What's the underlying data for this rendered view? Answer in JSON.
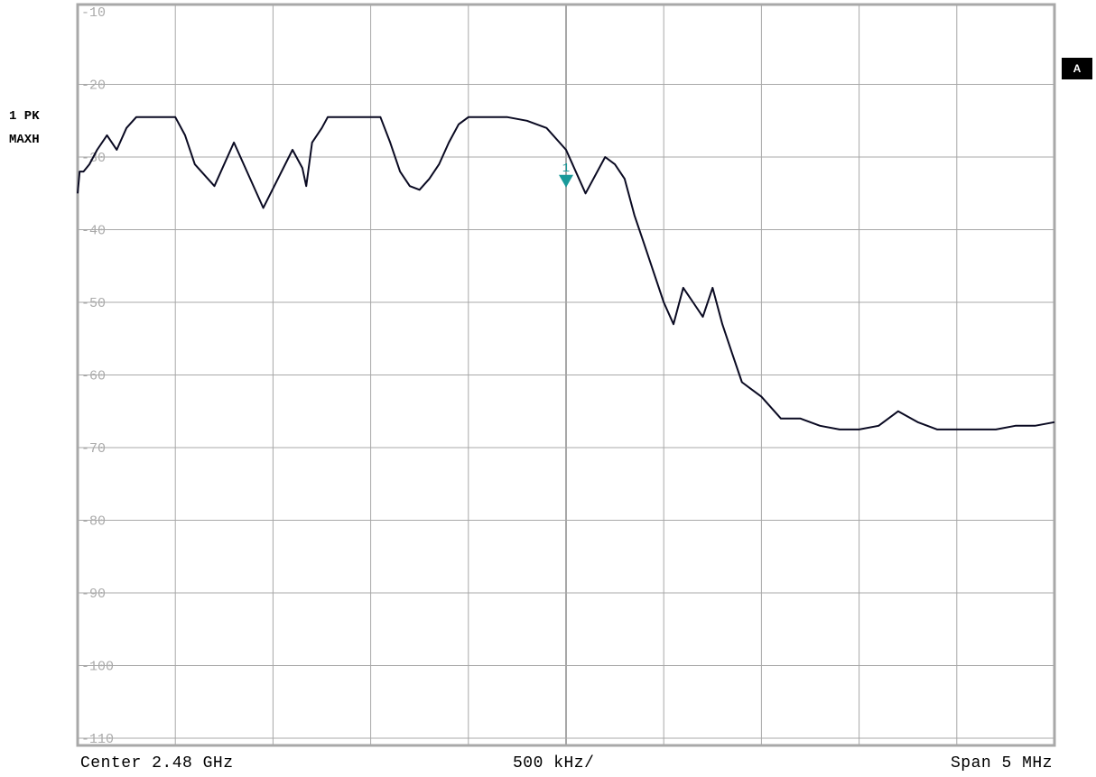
{
  "trace_info": {
    "detector": "1 PK",
    "mode": "MAXH"
  },
  "badge": "A",
  "footer": {
    "center": "Center 2.48 GHz",
    "per_division": "500 kHz/",
    "span": "Span 5 MHz"
  },
  "colors": {
    "trace": "#0a0a22",
    "grid": "#a8a8a8",
    "marker": "#1a9a9a",
    "tick_text": "#aaaaaa",
    "badge_bg": "#000000"
  },
  "chart_data": {
    "type": "line",
    "title": "",
    "xlabel": "",
    "ylabel": "",
    "xlim": [
      2477.5,
      2482.5
    ],
    "ylim": [
      -111,
      -9
    ],
    "grid": true,
    "y_ticks": [
      -10,
      -20,
      -30,
      -40,
      -50,
      -60,
      -70,
      -80,
      -90,
      -100,
      -110
    ],
    "y_tick_labels": [
      "-10",
      "-20",
      "-30",
      "-40",
      "-50",
      "-60",
      "-70",
      "-80",
      "-90",
      "-100",
      "-110"
    ],
    "series": [
      {
        "x": [
          2477.5,
          2477.51,
          2477.53,
          2477.56,
          2477.6,
          2477.65,
          2477.7,
          2477.75,
          2477.8,
          2477.85,
          2477.9,
          2477.95,
          2478.0,
          2478.05,
          2478.1,
          2478.2,
          2478.3,
          2478.45,
          2478.6,
          2478.65,
          2478.67,
          2478.7,
          2478.75,
          2478.78,
          2478.8,
          2478.85,
          2478.88,
          2478.95,
          2479.0,
          2479.05,
          2479.1,
          2479.15,
          2479.2,
          2479.25,
          2479.3,
          2479.35,
          2479.4,
          2479.45,
          2479.5,
          2479.55,
          2479.6,
          2479.7,
          2479.8,
          2479.9,
          2480.0,
          2480.1,
          2480.2,
          2480.25,
          2480.3,
          2480.35,
          2480.4,
          2480.45,
          2480.5,
          2480.55,
          2480.6,
          2480.65,
          2480.7,
          2480.75,
          2480.8,
          2480.85,
          2480.9,
          2480.95,
          2481.0,
          2481.05,
          2481.1,
          2481.2,
          2481.3,
          2481.4,
          2481.5,
          2481.6,
          2481.7,
          2481.8,
          2481.9,
          2482.0,
          2482.1,
          2482.2,
          2482.3,
          2482.4,
          2482.5
        ],
        "y": [
          -35,
          -32,
          -32,
          -31,
          -29,
          -27,
          -29,
          -26,
          -24.5,
          -24.5,
          -24.5,
          -24.5,
          -24.5,
          -27,
          -31,
          -34,
          -28,
          -37,
          -29,
          -31.5,
          -34,
          -28,
          -26,
          -24.5,
          -24.5,
          -24.5,
          -24.5,
          -24.5,
          -24.5,
          -24.5,
          -28,
          -32,
          -34,
          -34.5,
          -33,
          -31,
          -28,
          -25.5,
          -24.5,
          -24.5,
          -24.5,
          -24.5,
          -25,
          -26,
          -29,
          -35,
          -30,
          -31,
          -33,
          -38,
          -42,
          -46,
          -50,
          -53,
          -48,
          -50,
          -52,
          -48,
          -53,
          -57,
          -61,
          -62,
          -63,
          -64.5,
          -66,
          -66,
          -67,
          -67.5,
          -67.5,
          -67,
          -65,
          -66.5,
          -67.5,
          -67.5,
          -67.5,
          -67.5,
          -67,
          -67,
          -66.5
        ]
      }
    ],
    "marker": {
      "label": "1",
      "x": 2480.0,
      "y": -33.2
    }
  }
}
